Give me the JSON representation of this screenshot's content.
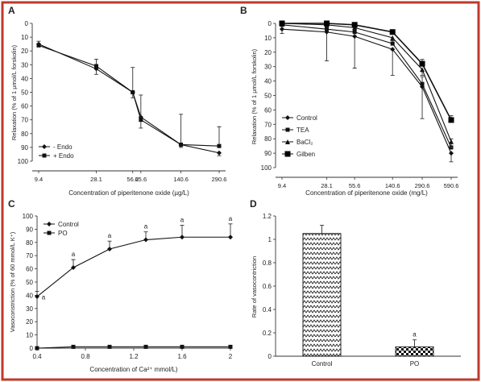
{
  "figure": {
    "border_color": "#c0392b"
  },
  "chart_data": [
    {
      "panel_letter": "A",
      "type": "line",
      "title": "",
      "ylabel": "Relaxation (% of 1 µmol/L forskolin)",
      "xlabel": "Concentration of piperitenone oxide (µg/L)",
      "ylim": [
        0,
        100
      ],
      "y_inverted": true,
      "y_ticks": [
        0,
        10,
        20,
        30,
        40,
        50,
        60,
        70,
        80,
        90,
        100
      ],
      "x_tick_labels": [
        "9.4",
        "28.1",
        "56.2",
        "65.6",
        "140.6",
        "290.6"
      ],
      "x_scale": "log",
      "x_range": [
        9.4,
        290.6
      ],
      "legend": "bottom-left",
      "series": [
        {
          "name": "- Endo",
          "marker": "diamond",
          "x": [
            9.4,
            28.1,
            56.2,
            65.6,
            140.6,
            290.6
          ],
          "y": [
            15,
            33,
            50,
            68,
            88,
            94
          ],
          "err": [
            1,
            4,
            4,
            8,
            2,
            2
          ]
        },
        {
          "name": "+ Endo",
          "marker": "square",
          "x": [
            9.4,
            28.1,
            56.2,
            65.6,
            140.6,
            290.6
          ],
          "y": [
            16,
            31,
            50,
            70,
            88,
            89
          ],
          "err": [
            3,
            5,
            18,
            18,
            22,
            14
          ]
        }
      ]
    },
    {
      "panel_letter": "B",
      "type": "line",
      "title": "",
      "ylabel": "Relaxation (% of 1 µmol/L forskolin)",
      "xlabel": "Concentration of piperitenone oxide (mg/L)",
      "ylim": [
        0,
        100
      ],
      "y_inverted": true,
      "y_ticks": [
        0,
        10,
        20,
        30,
        40,
        50,
        60,
        70,
        80,
        90,
        100
      ],
      "x_tick_labels": [
        "9.4",
        "28.1",
        "55.6",
        "140.6",
        "290.6",
        "590.6"
      ],
      "x_scale": "log",
      "x_range": [
        9.4,
        590.6
      ],
      "legend": "bottom-left",
      "series": [
        {
          "name": "Control",
          "marker": "diamond",
          "x": [
            9.4,
            28.1,
            55.6,
            140.6,
            290.6,
            590.6
          ],
          "y": [
            4,
            6,
            9,
            18,
            44,
            90
          ],
          "err": [
            3,
            20,
            22,
            18,
            22,
            6
          ]
        },
        {
          "name": "TEA",
          "marker": "square",
          "x": [
            9.4,
            28.1,
            55.6,
            140.6,
            290.6,
            590.6
          ],
          "y": [
            1,
            4,
            6,
            14,
            42,
            86
          ],
          "err": [
            1,
            2,
            2,
            2,
            5,
            6
          ]
        },
        {
          "name": "BaCl₂",
          "marker": "triangle",
          "x": [
            9.4,
            28.1,
            55.6,
            140.6,
            290.6,
            590.6
          ],
          "y": [
            0,
            1,
            3,
            10,
            32,
            82
          ],
          "err": [
            1,
            1,
            1,
            2,
            4,
            4
          ]
        },
        {
          "name": "Gilben",
          "marker": "square-filled",
          "x": [
            9.4,
            28.1,
            55.6,
            140.6,
            290.6,
            590.6
          ],
          "y": [
            0,
            0,
            1,
            6,
            28,
            67
          ],
          "err": [
            1,
            1,
            1,
            1,
            3,
            3
          ]
        }
      ]
    },
    {
      "panel_letter": "C",
      "type": "line",
      "title": "",
      "ylabel": "Vasoconstriction (% of 60 mmol/L K⁺)",
      "xlabel": "Concentration of Ca²⁺ mmol/L)",
      "ylim": [
        0,
        100
      ],
      "xlim": [
        0.4,
        2
      ],
      "y_ticks": [
        0,
        10,
        20,
        30,
        40,
        50,
        60,
        70,
        80,
        90,
        100
      ],
      "x_ticks": [
        0.4,
        0.8,
        1.2,
        1.6,
        2
      ],
      "legend": "top-left",
      "series": [
        {
          "name": "Control",
          "marker": "diamond",
          "x": [
            0.35,
            0.7,
            1.0,
            1.3,
            1.6,
            2.0
          ],
          "y": [
            39,
            61,
            75,
            82,
            84,
            84
          ],
          "err": [
            4,
            6,
            6,
            6,
            9,
            10
          ]
        },
        {
          "name": "PO",
          "marker": "square",
          "x": [
            0.35,
            0.7,
            1.0,
            1.3,
            1.6,
            2.0
          ],
          "y": [
            0,
            1,
            1,
            1,
            1,
            1
          ],
          "err": [
            0,
            0,
            0,
            0,
            0,
            0
          ]
        }
      ],
      "annotations": [
        "a",
        "a",
        "a",
        "a",
        "a",
        "a"
      ]
    },
    {
      "panel_letter": "D",
      "type": "bar",
      "title": "",
      "ylabel": "Rate of vasocontriction",
      "xlabel": "",
      "ylim": [
        0,
        1.2
      ],
      "y_ticks": [
        "0",
        "0.2",
        "0.4",
        "0.6",
        "0.8",
        "1",
        "1.2"
      ],
      "categories": [
        "Control",
        "PO"
      ],
      "values": [
        1.05,
        0.08
      ],
      "err": [
        0.07,
        0.06
      ],
      "patterns": [
        "zigzag",
        "checker"
      ],
      "annotations": [
        "",
        "a"
      ]
    }
  ]
}
